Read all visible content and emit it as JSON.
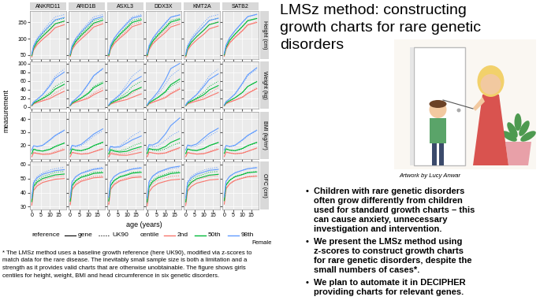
{
  "chart_data": {
    "type": "line",
    "facet_columns": [
      "ANKRD11",
      "ARID1B",
      "ASXL3",
      "DDX3X",
      "KMT2A",
      "SATB2"
    ],
    "x_label": "age (years)",
    "y_label": "measurement",
    "x": [
      0,
      1,
      3,
      6,
      10,
      13,
      18
    ],
    "xlim": [
      -1,
      19
    ],
    "xticks": [
      0,
      5,
      10,
      15
    ],
    "grid": true,
    "legend": "bottom",
    "reference": {
      "title": "reference",
      "gene": {
        "name": "gene",
        "line_style": "solid"
      },
      "baseline": {
        "name": "UK90",
        "line_style": "dotted"
      }
    },
    "centile": {
      "title": "centile",
      "items": [
        {
          "name": "2nd",
          "color": "#F8766D"
        },
        {
          "name": "50th",
          "color": "#00BA38"
        },
        {
          "name": "98th",
          "color": "#619CFF"
        }
      ]
    },
    "annotation": "Female",
    "rows": [
      {
        "label": "Height (cm)",
        "ylim": [
          38,
          185
        ],
        "yticks": [
          50,
          100,
          150
        ],
        "baseline": [
          [
            46,
            69,
            88,
            106,
            126,
            144,
            152
          ],
          [
            50,
            74,
            95,
            115,
            138,
            156,
            163
          ],
          [
            54,
            79,
            102,
            124,
            150,
            167,
            174
          ]
        ],
        "gene": [
          [
            [
              44,
              65,
              82,
              98,
              117,
              134,
              143
            ],
            [
              48,
              71,
              90,
              108,
              129,
              146,
              154
            ],
            [
              52,
              77,
              98,
              118,
              141,
              158,
              165
            ]
          ],
          [
            [
              45,
              66,
              83,
              99,
              119,
              136,
              146
            ],
            [
              49,
              72,
              91,
              110,
              131,
              148,
              157
            ],
            [
              53,
              78,
              99,
              120,
              143,
              160,
              168
            ]
          ],
          [
            [
              45,
              67,
              85,
              101,
              120,
              137,
              146
            ],
            [
              49,
              73,
              93,
              112,
              133,
              150,
              158
            ],
            [
              53,
              79,
              101,
              123,
              146,
              163,
              170
            ]
          ],
          [
            [
              45,
              66,
              84,
              100,
              119,
              136,
              145
            ],
            [
              49,
              72,
              92,
              111,
              133,
              151,
              159
            ],
            [
              53,
              78,
              100,
              122,
              147,
              166,
              173
            ]
          ],
          [
            [
              43,
              64,
              80,
              96,
              114,
              130,
              139
            ],
            [
              47,
              70,
              88,
              106,
              126,
              143,
              151
            ],
            [
              51,
              76,
              96,
              116,
              138,
              156,
              163
            ]
          ],
          [
            [
              46,
              68,
              87,
              104,
              124,
              142,
              150
            ],
            [
              50,
              74,
              95,
              114,
              137,
              155,
              162
            ],
            [
              54,
              80,
              103,
              125,
              150,
              168,
              175
            ]
          ]
        ]
      },
      {
        "label": "Weight (kg)",
        "ylim": [
          -5,
          105
        ],
        "yticks": [
          0,
          20,
          40,
          60,
          80,
          100
        ],
        "baseline": [
          [
            2.4,
            7.6,
            11.5,
            16,
            23,
            32,
            44
          ],
          [
            3.4,
            9.5,
            14.3,
            21,
            33,
            47,
            59
          ],
          [
            4.4,
            11.8,
            18,
            29,
            52,
            71,
            87
          ]
        ],
        "gene": [
          [
            [
              2.2,
              6.8,
              10,
              14,
              19,
              26,
              36
            ],
            [
              3.1,
              8.6,
              13,
              19,
              29,
              41,
              52
            ],
            [
              4.2,
              11,
              17.5,
              28,
              48,
              66,
              80
            ]
          ],
          [
            [
              2.3,
              7,
              10.5,
              14.5,
              20,
              28,
              38
            ],
            [
              3.2,
              9,
              13.5,
              20,
              31,
              44,
              55
            ],
            [
              4.3,
              11.5,
              18,
              30,
              53,
              72,
              88
            ]
          ],
          [
            [
              2.2,
              6.5,
              9.5,
              13,
              17,
              22,
              30
            ],
            [
              3.1,
              8.3,
              12.5,
              18,
              26,
              36,
              45
            ],
            [
              4.2,
              10.8,
              17,
              27,
              44,
              58,
              70
            ]
          ],
          [
            [
              2.3,
              7,
              10.5,
              15,
              21,
              30,
              41
            ],
            [
              3.2,
              9.3,
              14.5,
              22,
              35,
              51,
              64
            ],
            [
              4.4,
              12.3,
              20,
              35,
              62,
              88,
              100
            ]
          ],
          [
            [
              2.1,
              6.6,
              9.8,
              13.5,
              18,
              24,
              33
            ],
            [
              3,
              8.5,
              13,
              19,
              28,
              39,
              49
            ],
            [
              4.1,
              11,
              17.5,
              28,
              47,
              63,
              76
            ]
          ],
          [
            [
              2.4,
              7.4,
              11,
              15.5,
              22,
              31,
              42
            ],
            [
              3.4,
              9.4,
              14.2,
              21,
              33,
              47,
              58
            ],
            [
              4.5,
              12,
              18.5,
              30,
              54,
              74,
              90
            ]
          ]
        ]
      },
      {
        "label": "BMI (kg/m²)",
        "ylim": [
          9,
          46
        ],
        "yticks": [
          20,
          30,
          40
        ],
        "baseline": [
          [
            11,
            14.5,
            13.8,
            13.2,
            13.6,
            15,
            17.5
          ],
          [
            13.5,
            17,
            16,
            15.5,
            17,
            19.3,
            21.8
          ],
          [
            16,
            19.5,
            18.7,
            19.5,
            23.5,
            27,
            31
          ]
        ],
        "gene": [
          [
            [
              11,
              14,
              13.5,
              12.8,
              13,
              14.2,
              16.5
            ],
            [
              13.3,
              16.8,
              15.9,
              15.3,
              16.6,
              18.8,
              21.5
            ],
            [
              16,
              19.5,
              19,
              19.8,
              24,
              27.5,
              31.5
            ]
          ],
          [
            [
              11,
              14.3,
              13.7,
              13,
              13.4,
              14.8,
              17
            ],
            [
              13.4,
              17,
              16.1,
              15.7,
              17.3,
              19.6,
              22.2
            ],
            [
              16.2,
              19.8,
              19.2,
              20.5,
              25,
              28.5,
              32.5
            ]
          ],
          [
            [
              10.8,
              13.5,
              12.9,
              12.2,
              12.1,
              12.9,
              14.5
            ],
            [
              13,
              16.2,
              15.3,
              14.6,
              15.2,
              16.8,
              18.8
            ],
            [
              15.7,
              18.8,
              18.2,
              18.5,
              21.5,
              24,
              27
            ]
          ],
          [
            [
              11,
              14.5,
              13.9,
              13.3,
              13.9,
              15.5,
              18
            ],
            [
              13.5,
              17.3,
              16.6,
              16.5,
              18.8,
              22,
              25
            ],
            [
              16.4,
              20.3,
              20,
              22,
              28.5,
              35,
              41
            ]
          ],
          [
            [
              11,
              14.2,
              13.6,
              13,
              13.3,
              14.5,
              16.8
            ],
            [
              13.4,
              17,
              16.2,
              15.8,
              17.4,
              19.6,
              22
            ],
            [
              16.2,
              20,
              19.5,
              20.8,
              25.5,
              29,
              33
            ]
          ],
          [
            [
              11.1,
              14.6,
              13.9,
              13.3,
              13.8,
              15.2,
              17.7
            ],
            [
              13.6,
              17.1,
              16.1,
              15.7,
              17.3,
              19.6,
              22.1
            ],
            [
              16.2,
              19.7,
              19,
              19.9,
              24,
              27.5,
              31.5
            ]
          ]
        ]
      },
      {
        "label": "OFC (cm)",
        "ylim": [
          28,
          62
        ],
        "yticks": [
          30,
          40,
          50,
          60
        ],
        "baseline": [
          [
            32,
            43,
            46.5,
            49,
            50.5,
            51.5,
            52
          ],
          [
            34.5,
            45.5,
            49,
            51.5,
            53,
            54.5,
            55
          ],
          [
            37,
            48,
            51.5,
            54,
            56,
            57,
            58
          ]
        ],
        "gene": [
          [
            [
              31,
              41.5,
              44.8,
              47.2,
              48.6,
              49.5,
              50
            ],
            [
              33.5,
              44.3,
              47.6,
              50,
              51.5,
              52.6,
              53.2
            ],
            [
              36,
              47,
              50.5,
              53,
              54.5,
              55.6,
              56.3
            ]
          ],
          [
            [
              31.3,
              42,
              45.5,
              48,
              49.5,
              50.5,
              51
            ],
            [
              33.8,
              44.8,
              48.3,
              50.8,
              52.3,
              53.6,
              54.2
            ],
            [
              36.4,
              47.6,
              51.2,
              53.7,
              55.3,
              56.5,
              57.3
            ]
          ],
          [
            [
              31.5,
              42.3,
              45.7,
              48.2,
              49.6,
              50.6,
              51.1
            ],
            [
              34,
              45,
              48.5,
              51,
              52.5,
              53.8,
              54.4
            ],
            [
              36.6,
              47.8,
              51.4,
              53.9,
              55.5,
              56.7,
              57.5
            ]
          ],
          [
            [
              30.5,
              40.5,
              44,
              46.5,
              48,
              49,
              49.5
            ],
            [
              33.2,
              44,
              47.8,
              50.5,
              52.2,
              53.5,
              54.2
            ],
            [
              36,
              47.6,
              51.7,
              54.6,
              56.5,
              57.8,
              58.8
            ]
          ],
          [
            [
              30.8,
              41,
              44.3,
              46.7,
              48,
              49,
              49.5
            ],
            [
              33.3,
              44,
              47.3,
              49.8,
              51.3,
              52.4,
              53
            ],
            [
              35.9,
              47,
              50.4,
              53,
              54.6,
              55.8,
              56.5
            ]
          ],
          [
            [
              31.8,
              42.7,
              46.2,
              48.7,
              50.2,
              51.2,
              51.7
            ],
            [
              34.3,
              45.3,
              48.8,
              51.3,
              52.8,
              54.1,
              54.7
            ],
            [
              36.8,
              48,
              51.6,
              54.1,
              55.8,
              57,
              57.7
            ]
          ]
        ]
      }
    ]
  },
  "footnote": [
    "* The LMSz method uses a baseline growth reference (here UK90), modified via z-scores to",
    "match data for the rare disease. The inevitably small sample size is both a limitation and a",
    "strength as it provides valid charts that are otherwise unobtainable. The figure shows girls",
    "centiles for height, weight, BMI and head circumference in six genetic disorders."
  ],
  "title": [
    "LMSz method: constructing",
    "growth charts for rare genetic",
    "disorders"
  ],
  "artwork_caption": "Artwork by Lucy Anwar",
  "bullet_symbol": "•",
  "bullets": [
    [
      "Children with rare genetic disorders",
      "often grow differently from children",
      "used for standard growth charts – this",
      "can cause anxiety, unnecessary",
      "investigation and intervention."
    ],
    [
      "We present the LMSz method using",
      "z-scores to construct growth charts",
      "for rare genetic disorders, despite the",
      "small numbers of cases*."
    ],
    [
      "We plan to automate it in DECIPHER",
      "providing charts for relevant genes."
    ]
  ]
}
